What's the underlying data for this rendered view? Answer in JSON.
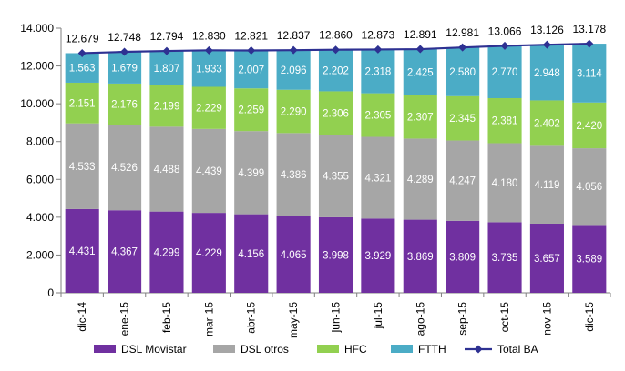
{
  "chart_data": {
    "type": "bar",
    "stacked": true,
    "categories": [
      "dic-14",
      "ene-15",
      "feb-15",
      "mar-15",
      "abr-15",
      "may-15",
      "jun-15",
      "jul-15",
      "ago-15",
      "sep-15",
      "oct-15",
      "nov-15",
      "dic-15"
    ],
    "series": [
      {
        "name": "DSL Movistar",
        "color": "#7030a0",
        "values": [
          4431,
          4367,
          4299,
          4229,
          4156,
          4065,
          3998,
          3929,
          3869,
          3809,
          3735,
          3657,
          3589
        ],
        "labels": [
          "4.431",
          "4.367",
          "4.299",
          "4.229",
          "4.156",
          "4.065",
          "3.998",
          "3.929",
          "3.869",
          "3.809",
          "3.735",
          "3.657",
          "3.589"
        ]
      },
      {
        "name": "DSL otros",
        "color": "#a6a6a6",
        "values": [
          4533,
          4526,
          4488,
          4439,
          4399,
          4386,
          4355,
          4321,
          4289,
          4247,
          4180,
          4119,
          4056
        ],
        "labels": [
          "4.533",
          "4.526",
          "4.488",
          "4.439",
          "4.399",
          "4.386",
          "4.355",
          "4.321",
          "4.289",
          "4.247",
          "4.180",
          "4.119",
          "4.056"
        ]
      },
      {
        "name": "HFC",
        "color": "#92d050",
        "values": [
          2151,
          2176,
          2199,
          2229,
          2259,
          2290,
          2306,
          2305,
          2307,
          2345,
          2381,
          2402,
          2420
        ],
        "labels": [
          "2.151",
          "2.176",
          "2.199",
          "2.229",
          "2.259",
          "2.290",
          "2.306",
          "2.305",
          "2.307",
          "2.345",
          "2.381",
          "2.402",
          "2.420"
        ]
      },
      {
        "name": "FTTH",
        "color": "#4bacc6",
        "values": [
          1563,
          1679,
          1807,
          1933,
          2007,
          2096,
          2202,
          2318,
          2425,
          2580,
          2770,
          2948,
          3114
        ],
        "labels": [
          "1.563",
          "1.679",
          "1.807",
          "1.933",
          "2.007",
          "2.096",
          "2.202",
          "2.318",
          "2.425",
          "2.580",
          "2.770",
          "2.948",
          "3.114"
        ]
      }
    ],
    "line_series": {
      "name": "Total BA",
      "color": "#2e3192",
      "values": [
        12679,
        12748,
        12794,
        12830,
        12821,
        12837,
        12860,
        12873,
        12891,
        12981,
        13066,
        13126,
        13178
      ],
      "labels": [
        "12.679",
        "12.748",
        "12.794",
        "12.830",
        "12.821",
        "12.837",
        "12.860",
        "12.873",
        "12.891",
        "12.981",
        "13.066",
        "13.126",
        "13.178"
      ]
    },
    "ylim": [
      0,
      14000
    ],
    "yticks": [
      0,
      2000,
      4000,
      6000,
      8000,
      10000,
      12000,
      14000
    ],
    "ytick_labels": [
      "0",
      "2.000",
      "4.000",
      "6.000",
      "8.000",
      "10.000",
      "12.000",
      "14.000"
    ],
    "grid": false,
    "legend": "bottom",
    "title": "",
    "xlabel": "",
    "ylabel": ""
  }
}
